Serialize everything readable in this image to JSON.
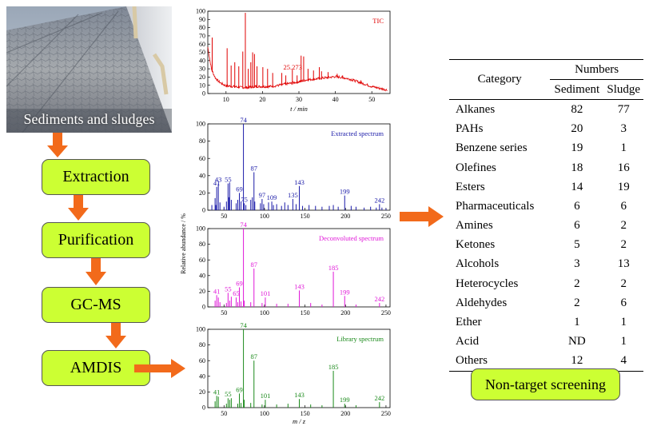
{
  "colors": {
    "step_fill": "#ccff33",
    "arrow": "#f26a1b",
    "tic": "#e00000",
    "extracted": "#1a1aa8",
    "deconvoluted": "#e018d8",
    "library": "#1b8a1b"
  },
  "photo": {
    "caption": "Sediments and sludges"
  },
  "steps": [
    {
      "label": "Extraction"
    },
    {
      "label": "Purification"
    },
    {
      "label": "GC-MS"
    },
    {
      "label": "AMDIS"
    }
  ],
  "result_box": {
    "label": "Non-target screening"
  },
  "table": {
    "header": {
      "category": "Category",
      "numbers": "Numbers",
      "sediment": "Sediment",
      "sludge": "Sludge"
    },
    "rows": [
      {
        "category": "Alkanes",
        "sediment": "82",
        "sludge": "77"
      },
      {
        "category": "PAHs",
        "sediment": "20",
        "sludge": "3"
      },
      {
        "category": "Benzene series",
        "sediment": "19",
        "sludge": "1"
      },
      {
        "category": "Olefines",
        "sediment": "18",
        "sludge": "16"
      },
      {
        "category": "Esters",
        "sediment": "14",
        "sludge": "19"
      },
      {
        "category": "Pharmaceuticals",
        "sediment": "6",
        "sludge": "6"
      },
      {
        "category": "Amines",
        "sediment": "6",
        "sludge": "2"
      },
      {
        "category": "Ketones",
        "sediment": "5",
        "sludge": "2"
      },
      {
        "category": "Alcohols",
        "sediment": "3",
        "sludge": "13"
      },
      {
        "category": "Heterocycles",
        "sediment": "2",
        "sludge": "2"
      },
      {
        "category": "Aldehydes",
        "sediment": "2",
        "sludge": "6"
      },
      {
        "category": "Ether",
        "sediment": "1",
        "sludge": "1"
      },
      {
        "category": "Acid",
        "sediment": "ND",
        "sludge": "1"
      },
      {
        "category": "Others",
        "sediment": "12",
        "sludge": "4"
      }
    ]
  },
  "chart_data": [
    {
      "type": "line",
      "title": "TIC",
      "xlabel": "t / min",
      "ylabel": "",
      "xlim": [
        5,
        55
      ],
      "ylim": [
        0,
        100
      ],
      "xticks": [
        10,
        20,
        30,
        40,
        50
      ],
      "yticks": [
        0,
        10,
        20,
        30,
        40,
        50,
        60,
        70,
        80,
        90,
        100
      ],
      "annotation": {
        "text": "25.273",
        "x": 25.273,
        "y": 27
      },
      "peaks": [
        [
          6.2,
          68
        ],
        [
          10.3,
          55
        ],
        [
          11.4,
          34
        ],
        [
          12.4,
          38
        ],
        [
          13.5,
          33
        ],
        [
          14.6,
          51
        ],
        [
          15.3,
          98
        ],
        [
          16.1,
          30
        ],
        [
          16.8,
          38
        ],
        [
          17.3,
          50
        ],
        [
          17.8,
          48
        ],
        [
          18.5,
          33
        ],
        [
          20.1,
          32
        ],
        [
          21.4,
          30
        ],
        [
          22.8,
          25
        ],
        [
          25.3,
          25
        ],
        [
          26.4,
          22
        ],
        [
          28.2,
          29
        ],
        [
          29.5,
          22
        ],
        [
          30.6,
          46
        ],
        [
          31.3,
          45
        ],
        [
          32.5,
          30
        ],
        [
          34.0,
          28
        ],
        [
          35.6,
          32
        ],
        [
          36.2,
          27
        ],
        [
          38.0,
          26
        ],
        [
          40.5,
          24
        ],
        [
          42.0,
          22
        ],
        [
          44.8,
          18
        ],
        [
          47.0,
          16
        ]
      ],
      "baseline": [
        [
          5,
          55
        ],
        [
          6,
          28
        ],
        [
          7,
          18
        ],
        [
          8,
          13
        ],
        [
          9,
          10
        ],
        [
          10,
          8
        ],
        [
          12,
          7
        ],
        [
          14,
          6
        ],
        [
          16,
          6
        ],
        [
          18,
          7
        ],
        [
          20,
          7
        ],
        [
          22,
          7
        ],
        [
          24,
          8
        ],
        [
          26,
          10
        ],
        [
          28,
          11
        ],
        [
          30,
          13
        ],
        [
          32,
          15
        ],
        [
          34,
          16
        ],
        [
          36,
          17
        ],
        [
          38,
          18
        ],
        [
          40,
          19
        ],
        [
          42,
          18
        ],
        [
          44,
          16
        ],
        [
          46,
          13
        ],
        [
          48,
          10
        ],
        [
          50,
          7
        ],
        [
          52,
          5
        ],
        [
          54,
          3
        ],
        [
          55,
          3
        ]
      ]
    },
    {
      "type": "bar",
      "title": "Extracted spectrum",
      "xlabel": "",
      "ylabel": "",
      "xlim": [
        30,
        255
      ],
      "ylim": [
        0,
        100
      ],
      "xticks": [
        50,
        100,
        150,
        200,
        250
      ],
      "yticks": [
        0,
        20,
        40,
        60,
        80,
        100
      ],
      "labeled_peaks": [
        [
          41,
          27
        ],
        [
          43,
          31
        ],
        [
          55,
          31
        ],
        [
          69,
          20
        ],
        [
          74,
          100
        ],
        [
          75,
          8
        ],
        [
          87,
          44
        ],
        [
          97,
          13
        ],
        [
          109,
          10
        ],
        [
          135,
          13
        ],
        [
          143,
          28
        ],
        [
          199,
          17
        ],
        [
          242,
          7
        ]
      ],
      "peaks": [
        [
          35,
          6
        ],
        [
          39,
          14
        ],
        [
          40,
          6
        ],
        [
          45,
          9
        ],
        [
          50,
          4
        ],
        [
          53,
          10
        ],
        [
          56,
          15
        ],
        [
          57,
          32
        ],
        [
          59,
          12
        ],
        [
          65,
          8
        ],
        [
          67,
          12
        ],
        [
          71,
          10
        ],
        [
          77,
          6
        ],
        [
          83,
          12
        ],
        [
          85,
          15
        ],
        [
          88,
          10
        ],
        [
          95,
          8
        ],
        [
          99,
          7
        ],
        [
          105,
          9
        ],
        [
          111,
          6
        ],
        [
          115,
          7
        ],
        [
          121,
          5
        ],
        [
          125,
          9
        ],
        [
          129,
          6
        ],
        [
          139,
          7
        ],
        [
          147,
          5
        ],
        [
          155,
          6
        ],
        [
          163,
          5
        ],
        [
          171,
          4
        ],
        [
          180,
          5
        ],
        [
          185,
          6
        ],
        [
          191,
          4
        ],
        [
          207,
          5
        ],
        [
          213,
          4
        ],
        [
          223,
          3
        ],
        [
          231,
          4
        ],
        [
          238,
          3
        ],
        [
          245,
          3
        ],
        [
          250,
          2
        ]
      ]
    },
    {
      "type": "bar",
      "title": "Deconvoluted spectrum",
      "xlabel": "",
      "ylabel": "Relative abundance / %",
      "xlim": [
        30,
        255
      ],
      "ylim": [
        0,
        100
      ],
      "xticks": [
        50,
        100,
        150,
        200,
        250
      ],
      "yticks": [
        0,
        20,
        40,
        60,
        80,
        100
      ],
      "labeled_peaks": [
        [
          41,
          15
        ],
        [
          55,
          18
        ],
        [
          65,
          12
        ],
        [
          69,
          25
        ],
        [
          74,
          100
        ],
        [
          87,
          49
        ],
        [
          101,
          12
        ],
        [
          143,
          21
        ],
        [
          185,
          45
        ],
        [
          199,
          14
        ],
        [
          242,
          5
        ]
      ],
      "peaks": [
        [
          39,
          8
        ],
        [
          43,
          12
        ],
        [
          45,
          6
        ],
        [
          53,
          5
        ],
        [
          57,
          8
        ],
        [
          59,
          13
        ],
        [
          67,
          6
        ],
        [
          71,
          7
        ],
        [
          75,
          8
        ],
        [
          83,
          6
        ],
        [
          97,
          5
        ],
        [
          115,
          4
        ],
        [
          129,
          4
        ],
        [
          157,
          5
        ],
        [
          171,
          3
        ],
        [
          213,
          3
        ]
      ]
    },
    {
      "type": "bar",
      "title": "Library spectrum",
      "xlabel": "m / z",
      "ylabel": "",
      "xlim": [
        30,
        255
      ],
      "ylim": [
        0,
        100
      ],
      "xticks": [
        50,
        100,
        150,
        200,
        250
      ],
      "yticks": [
        0,
        20,
        40,
        60,
        80,
        100
      ],
      "labeled_peaks": [
        [
          41,
          15
        ],
        [
          55,
          12
        ],
        [
          69,
          18
        ],
        [
          74,
          100
        ],
        [
          87,
          60
        ],
        [
          101,
          10
        ],
        [
          143,
          11
        ],
        [
          185,
          47
        ],
        [
          199,
          5
        ],
        [
          242,
          7
        ]
      ],
      "peaks": [
        [
          39,
          8
        ],
        [
          43,
          14
        ],
        [
          53,
          5
        ],
        [
          57,
          10
        ],
        [
          59,
          12
        ],
        [
          67,
          5
        ],
        [
          71,
          6
        ],
        [
          75,
          10
        ],
        [
          83,
          6
        ],
        [
          97,
          4
        ],
        [
          115,
          4
        ],
        [
          129,
          5
        ],
        [
          157,
          4
        ],
        [
          171,
          3
        ],
        [
          213,
          3
        ]
      ]
    }
  ]
}
